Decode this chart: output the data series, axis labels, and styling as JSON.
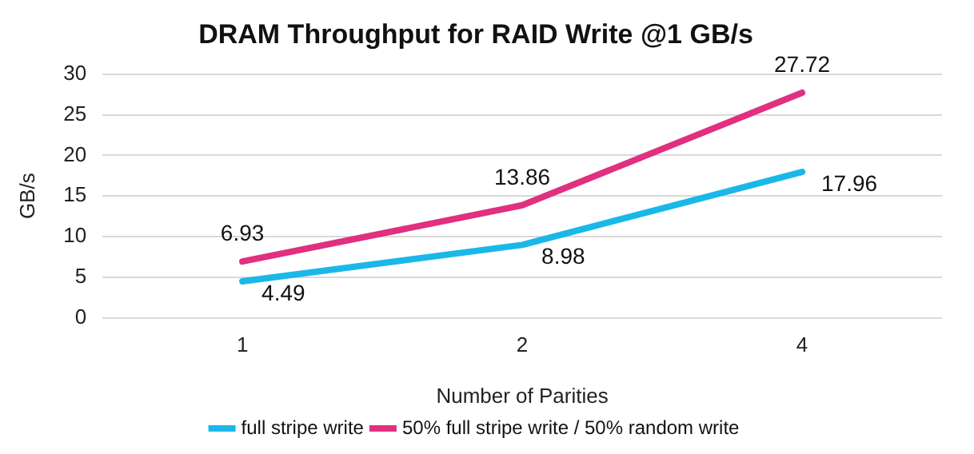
{
  "chart_data": {
    "type": "line",
    "title": "DRAM Throughput for RAID Write @1 GB/s",
    "xlabel": "Number of Parities",
    "ylabel": "GB/s",
    "categories": [
      "1",
      "2",
      "4"
    ],
    "series": [
      {
        "name": "full stripe write",
        "color": "#1ab8e8",
        "values": [
          4.49,
          8.98,
          17.96
        ]
      },
      {
        "name": "50% full stripe write / 50% random write",
        "color": "#e0307f",
        "values": [
          6.93,
          13.86,
          27.72
        ]
      }
    ],
    "ylim": [
      0,
      30
    ],
    "yticks": [
      0,
      5,
      10,
      15,
      20,
      25,
      30
    ],
    "grid": "y",
    "legend": "bottom",
    "data_labels": true,
    "marker": "none",
    "line_style": "solid"
  }
}
